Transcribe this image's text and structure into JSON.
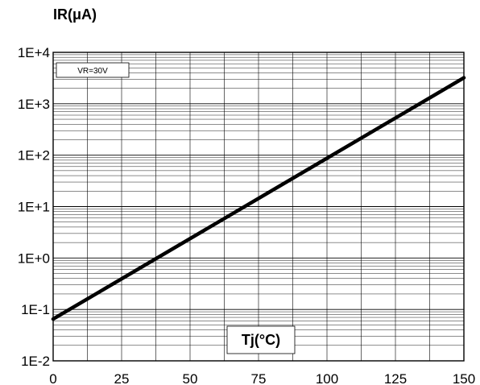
{
  "chart_data": {
    "type": "line",
    "title": "",
    "ylabel": "IR(μA)",
    "xlabel": "Tj(°C)",
    "annotation": "VR=30V",
    "x_ticks": [
      "0",
      "25",
      "50",
      "75",
      "100",
      "125",
      "150"
    ],
    "y_ticks": [
      "1E-2",
      "1E-1",
      "1E+0",
      "1E+1",
      "1E+2",
      "1E+3",
      "1E+4"
    ],
    "xlim": [
      0,
      150
    ],
    "ylim": [
      0.01,
      10000
    ],
    "y_scale": "log",
    "grid": true,
    "series": [
      {
        "x": [
          0,
          150
        ],
        "y": [
          0.065,
          3200
        ]
      }
    ]
  }
}
